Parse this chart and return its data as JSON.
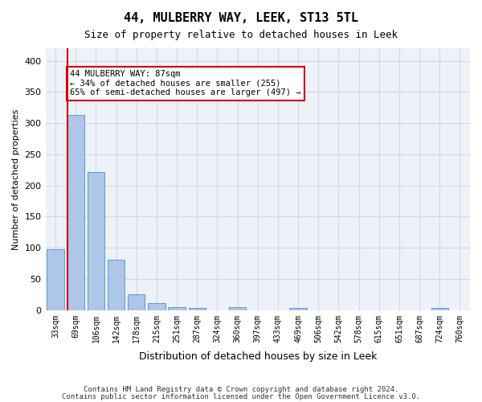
{
  "title": "44, MULBERRY WAY, LEEK, ST13 5TL",
  "subtitle": "Size of property relative to detached houses in Leek",
  "xlabel": "Distribution of detached houses by size in Leek",
  "ylabel": "Number of detached properties",
  "footer_line1": "Contains HM Land Registry data © Crown copyright and database right 2024.",
  "footer_line2": "Contains public sector information licensed under the Open Government Licence v3.0.",
  "categories": [
    "33sqm",
    "69sqm",
    "106sqm",
    "142sqm",
    "178sqm",
    "215sqm",
    "251sqm",
    "287sqm",
    "324sqm",
    "360sqm",
    "397sqm",
    "433sqm",
    "469sqm",
    "506sqm",
    "542sqm",
    "578sqm",
    "615sqm",
    "651sqm",
    "687sqm",
    "724sqm",
    "760sqm"
  ],
  "values": [
    98,
    313,
    222,
    81,
    25,
    11,
    5,
    4,
    0,
    5,
    0,
    0,
    3,
    0,
    0,
    0,
    0,
    0,
    0,
    3,
    0
  ],
  "bar_color": "#aec6e8",
  "bar_edge_color": "#5b9bd5",
  "grid_color": "#d0d8e8",
  "property_sqm": 87,
  "property_bin_index": 1,
  "red_line_x": 1,
  "annotation_text": "44 MULBERRY WAY: 87sqm\n← 34% of detached houses are smaller (255)\n65% of semi-detached houses are larger (497) →",
  "annotation_box_color": "#ffffff",
  "annotation_box_edge_color": "#cc0000",
  "red_line_color": "#cc0000",
  "ylim": [
    0,
    420
  ],
  "yticks": [
    0,
    50,
    100,
    150,
    200,
    250,
    300,
    350,
    400
  ],
  "background_color": "#ffffff",
  "plot_background_color": "#eef2f8"
}
